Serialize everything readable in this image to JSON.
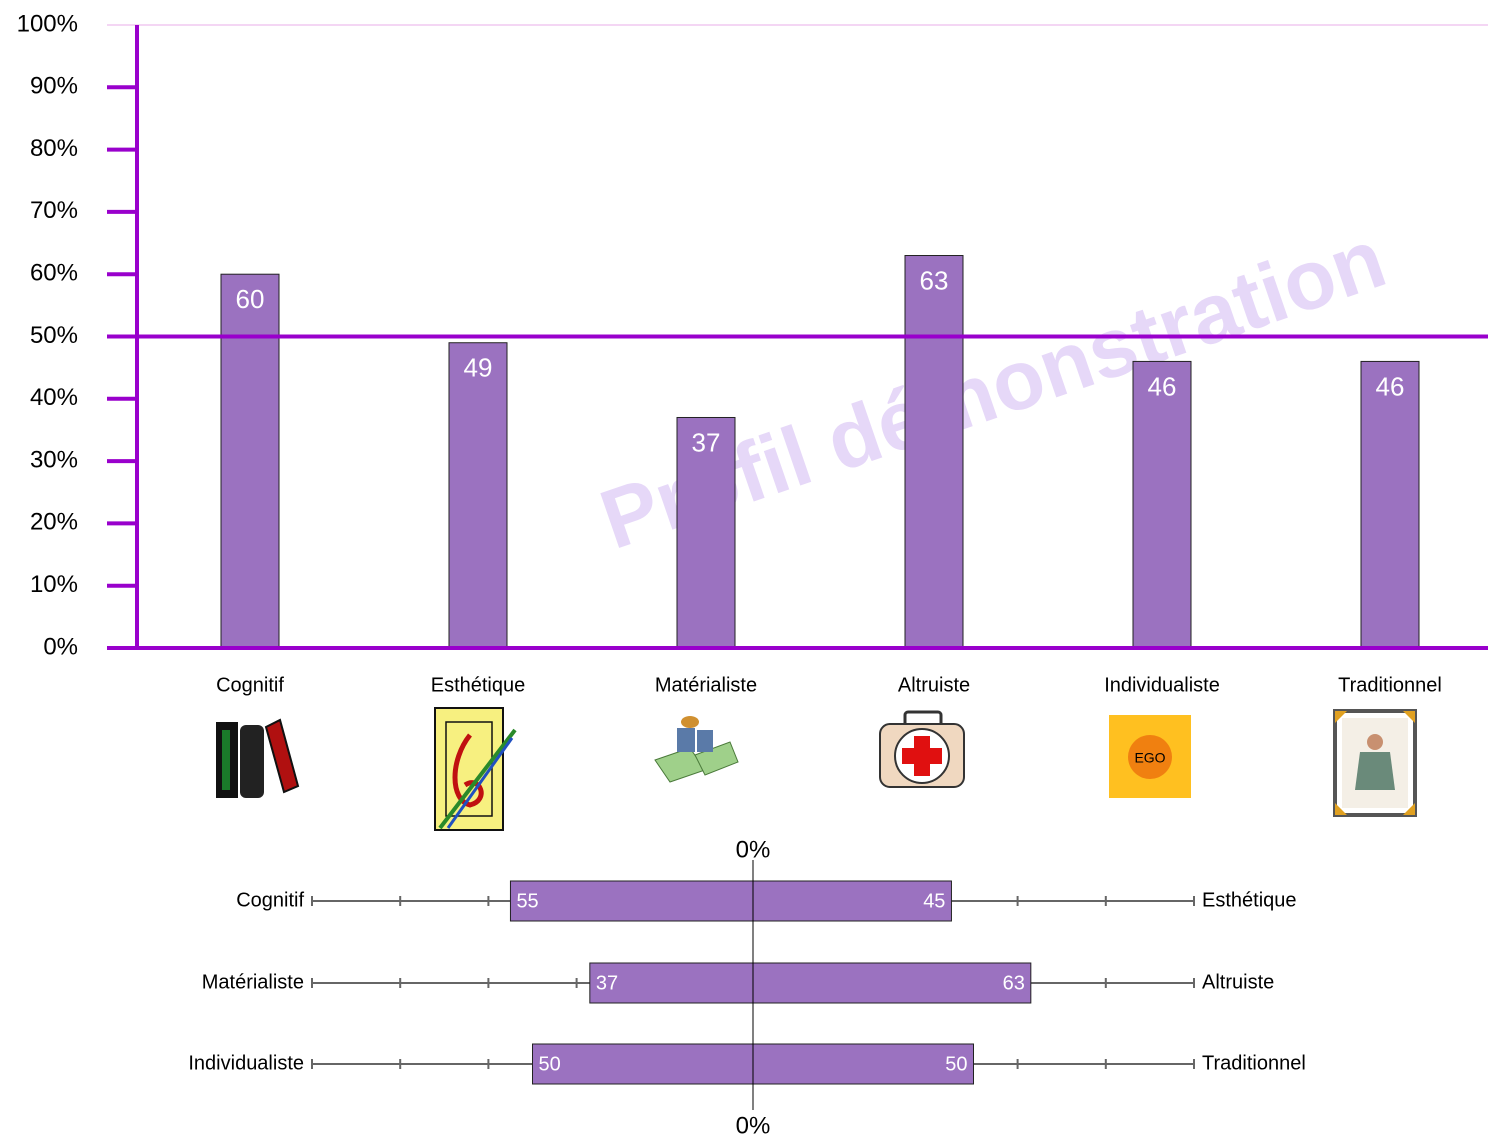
{
  "chart_data": [
    {
      "type": "bar",
      "watermark": "Profil démonstration",
      "categories": [
        "Cognitif",
        "Esthétique",
        "Matérialiste",
        "Altruiste",
        "Individualiste",
        "Traditionnel"
      ],
      "values": [
        60,
        49,
        37,
        63,
        46,
        46
      ],
      "color": "#9b72c0",
      "axis_color": "#9900cc",
      "reference_line": 50,
      "ylim": [
        0,
        100
      ],
      "yticks": [
        {
          "value": 0,
          "label": "0%"
        },
        {
          "value": 10,
          "label": "10%"
        },
        {
          "value": 20,
          "label": "20%"
        },
        {
          "value": 30,
          "label": "30%"
        },
        {
          "value": 40,
          "label": "40%"
        },
        {
          "value": 50,
          "label": "50%"
        },
        {
          "value": 60,
          "label": "60%"
        },
        {
          "value": 70,
          "label": "70%"
        },
        {
          "value": 80,
          "label": "80%"
        },
        {
          "value": 90,
          "label": "90%"
        },
        {
          "value": 100,
          "label": "100%"
        }
      ]
    },
    {
      "type": "diverging_bar",
      "left_categories": [
        "Cognitif",
        "Matérialiste",
        "Individualiste"
      ],
      "right_categories": [
        "Esthétique",
        "Altruiste",
        "Traditionnel"
      ],
      "left_values": [
        55,
        37,
        50
      ],
      "right_values": [
        45,
        63,
        50
      ],
      "color": "#9b72c0",
      "center_label": "0%",
      "xlim": [
        0,
        100
      ],
      "xticks": [
        20,
        40,
        60,
        80,
        100
      ]
    }
  ]
}
